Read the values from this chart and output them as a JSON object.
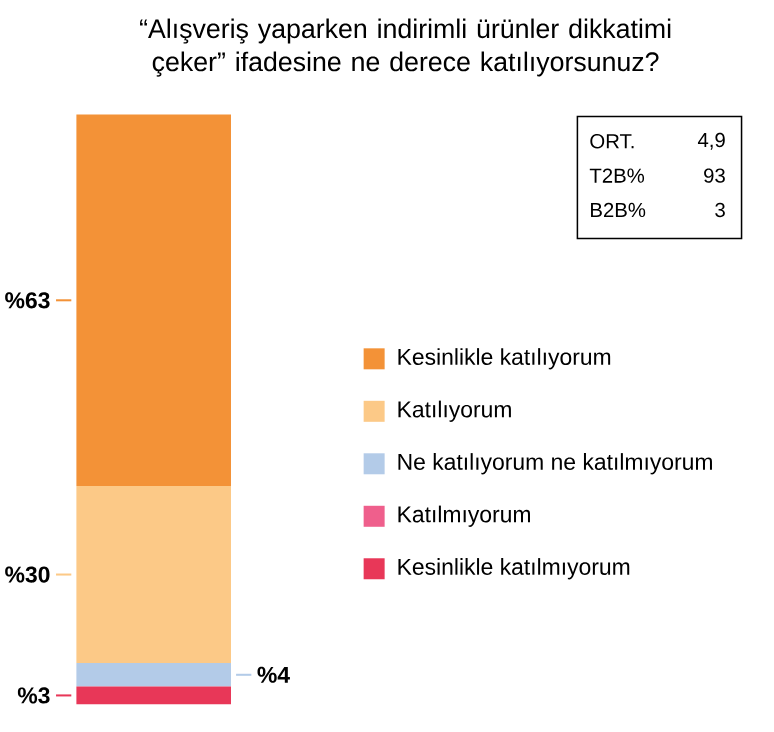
{
  "chart_data": {
    "type": "bar",
    "title": "“Alışveriş yaparken indirimli ürünler dikkatimi çeker” ifadesine ne derece katılıyorsunuz?",
    "categories": [
      null
    ],
    "stacked": true,
    "legend": "right",
    "series": [
      {
        "name": "Kesinlikle katılmıyorum",
        "color": "#e83758",
        "values": [
          3
        ],
        "value_labels": [
          "%3"
        ]
      },
      {
        "name": "Katılmıyorum",
        "color": "#ef5f8c",
        "values": [
          0
        ],
        "value_labels": [
          null
        ]
      },
      {
        "name": "Ne katılıyorum ne katılmıyorum",
        "color": "#b3cbe8",
        "values": [
          4
        ],
        "value_labels": [
          "%4"
        ]
      },
      {
        "name": "Katılıyorum",
        "color": "#fcc987",
        "values": [
          30
        ],
        "value_labels": [
          "%30"
        ]
      },
      {
        "name": "Kesinlikle katılıyorum",
        "color": "#f39237",
        "values": [
          63
        ],
        "value_labels": [
          "%63"
        ]
      }
    ],
    "annotations": [
      "ORT.",
      "4,9",
      "T2B%",
      "93",
      "B2B%",
      "3"
    ]
  }
}
